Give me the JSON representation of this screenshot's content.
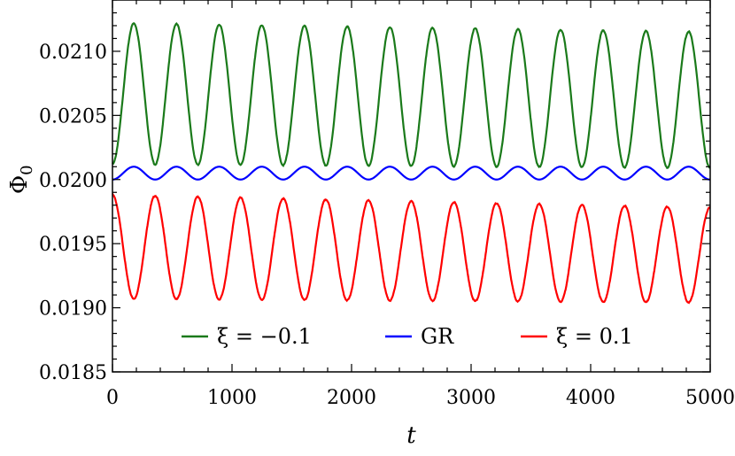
{
  "chart_data": {
    "type": "line",
    "title": "",
    "xlabel": "t",
    "ylabel": "Φ",
    "ylabel_subscript": "0",
    "xlim": [
      0,
      5000
    ],
    "ylim": [
      0.0185,
      0.0214
    ],
    "xticks": [
      0,
      1000,
      2000,
      3000,
      4000,
      5000
    ],
    "xtick_labels": [
      "0",
      "1000",
      "2000",
      "3000",
      "4000",
      "5000"
    ],
    "yticks": [
      0.0185,
      0.019,
      0.0195,
      0.02,
      0.0205,
      0.021
    ],
    "ytick_labels": [
      "0.0185",
      "0.0190",
      "0.0195",
      "0.0200",
      "0.0205",
      "0.0210"
    ],
    "grid": false,
    "legend_position": "bottom",
    "series": [
      {
        "name": "ξ = −0.1",
        "color": "#1a7a1a",
        "start": 0.02,
        "max_start": 0.02122,
        "max_end": 0.02115,
        "min_start": 0.02012,
        "min_end": 0.02009,
        "period": 357
      },
      {
        "name": "GR",
        "color": "#0000ff",
        "start": 0.02,
        "max_start": 0.0201,
        "max_end": 0.0201,
        "min_start": 0.02,
        "min_end": 0.02,
        "period": 357
      },
      {
        "name": "ξ = 0.1",
        "color": "#ff0000",
        "start": 0.02,
        "max_start": 0.01988,
        "max_end": 0.01978,
        "min_start": 0.01907,
        "min_end": 0.01904,
        "period": 357
      }
    ]
  }
}
